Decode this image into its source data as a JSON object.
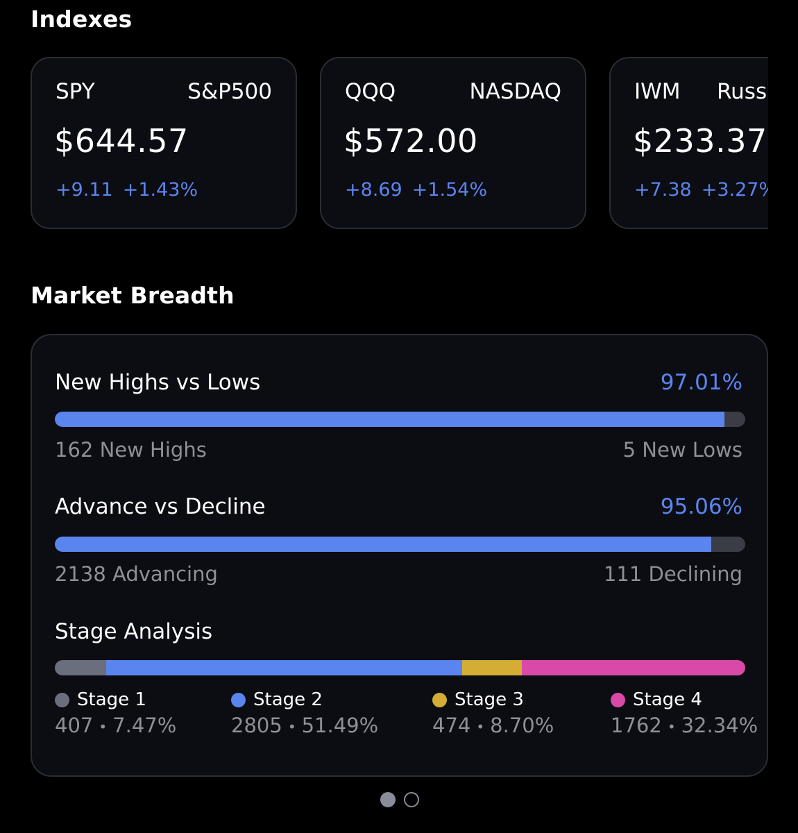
{
  "indexes": {
    "title": "Indexes",
    "cards": [
      {
        "ticker": "SPY",
        "name": "S&P500",
        "price": "$644.57",
        "change": "+9.11",
        "change_pct": "+1.43%"
      },
      {
        "ticker": "QQQ",
        "name": "NASDAQ",
        "price": "$572.00",
        "change": "+8.69",
        "change_pct": "+1.54%"
      },
      {
        "ticker": "IWM",
        "name": "Russ",
        "price": "$233.37",
        "change": "+7.38",
        "change_pct": "+3.27%"
      }
    ]
  },
  "breadth": {
    "title": "Market Breadth",
    "highs_lows": {
      "label": "New Highs vs Lows",
      "percent": "97.01%",
      "fill_fraction": 0.9701,
      "left_text": "162 New Highs",
      "right_text": "5 New Lows"
    },
    "advance_decline": {
      "label": "Advance vs Decline",
      "percent": "95.06%",
      "fill_fraction": 0.9506,
      "left_text": "2138 Advancing",
      "right_text": "111 Declining"
    },
    "stages": {
      "label": "Stage Analysis",
      "items": [
        {
          "label": "Stage 1",
          "count": "407",
          "percent": "7.47%",
          "fraction": 0.0747,
          "color": "#6b6e7d"
        },
        {
          "label": "Stage 2",
          "count": "2805",
          "percent": "51.49%",
          "fraction": 0.5149,
          "color": "#5b85ee"
        },
        {
          "label": "Stage 3",
          "count": "474",
          "percent": "8.70%",
          "fraction": 0.087,
          "color": "#d4ad35"
        },
        {
          "label": "Stage 4",
          "count": "1762",
          "percent": "32.34%",
          "fraction": 0.3234,
          "color": "#d94aa8"
        }
      ],
      "separator": "•"
    }
  },
  "pager": {
    "page_count": 2,
    "active_page": 1
  },
  "colors": {
    "accent": "#5b85ee",
    "background": "#000000",
    "card": "#0c0d12"
  }
}
